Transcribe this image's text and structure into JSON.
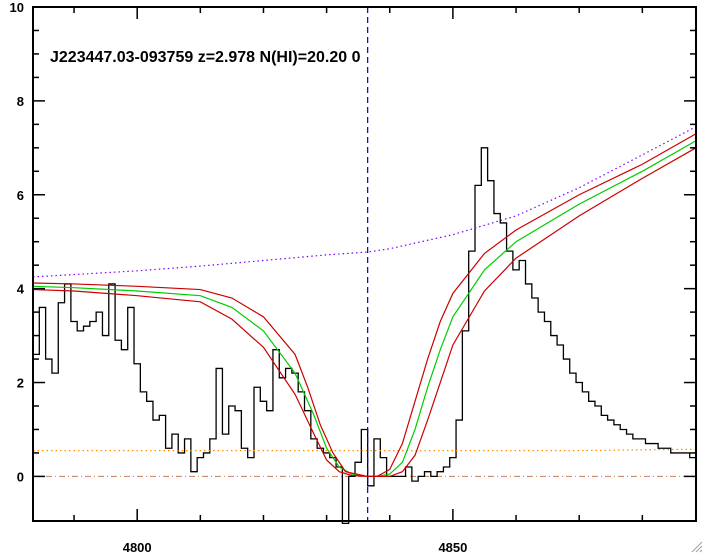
{
  "chart_data": {
    "type": "line",
    "title": "J223447.03-093759 z=2.978 N(HI)=20.20 0",
    "xlabel": "",
    "ylabel": "",
    "xlim": [
      4783.5,
      4888.5
    ],
    "ylim": [
      -0.95,
      10
    ],
    "x_ticks": [
      4800,
      4850
    ],
    "y_ticks": [
      0,
      2,
      4,
      6,
      8,
      10
    ],
    "grid": false,
    "legend": "none",
    "vline_x": 4836.5,
    "zero_level": 0,
    "series": [
      {
        "kind": "flux-histogram",
        "color": "#000000",
        "x": [
          4783.5,
          4784.5,
          4785.5,
          4786.5,
          4787.5,
          4788.5,
          4789.5,
          4790.5,
          4791.5,
          4792.5,
          4793.5,
          4794.5,
          4795.5,
          4796.5,
          4797.5,
          4798.5,
          4799.5,
          4800.5,
          4801.5,
          4802.5,
          4803.5,
          4804.5,
          4805.5,
          4806.5,
          4807.5,
          4808.5,
          4809.5,
          4810.5,
          4811.5,
          4812.5,
          4813.5,
          4814.5,
          4815.5,
          4816.5,
          4817.5,
          4818.5,
          4819.5,
          4820.5,
          4821.5,
          4822.5,
          4823.5,
          4824.5,
          4825.5,
          4826.5,
          4827.5,
          4828.5,
          4829.5,
          4830.5,
          4831.5,
          4832.5,
          4833.5,
          4834.5,
          4835.5,
          4836.5,
          4837.5,
          4838.5,
          4839.5,
          4840.5,
          4841.5,
          4842.5,
          4843.5,
          4844.5,
          4845.5,
          4846.5,
          4847.5,
          4848.5,
          4849.5,
          4850.5,
          4851.5,
          4852.5,
          4853.5,
          4854.5,
          4855.5,
          4856.5,
          4857.5,
          4858.5,
          4859.5,
          4860.5,
          4861.5,
          4862.5,
          4863.5,
          4864.5,
          4865.5,
          4866.5,
          4867.5,
          4868.5,
          4869.5,
          4870.5,
          4871.5,
          4872.5,
          4873.5,
          4874.5,
          4875.5,
          4876.5,
          4877.5,
          4878.5,
          4879.5,
          4880.5,
          4881.5,
          4882.5,
          4883.5,
          4884.5,
          4885.5,
          4886.5,
          4887.5
        ],
        "y": [
          2.6,
          3.6,
          2.5,
          2.2,
          3.7,
          4.1,
          3.3,
          3.1,
          3.2,
          3.3,
          3.5,
          3.0,
          4.1,
          2.9,
          2.7,
          3.6,
          2.4,
          1.8,
          1.6,
          1.2,
          1.3,
          0.6,
          0.9,
          0.5,
          0.8,
          0.1,
          0.4,
          0.5,
          0.8,
          2.3,
          0.9,
          1.5,
          1.4,
          0.6,
          0.4,
          1.9,
          1.6,
          1.4,
          2.7,
          2.1,
          2.3,
          2.2,
          1.8,
          1.4,
          0.8,
          0.6,
          0.5,
          0.4,
          0.2,
          -1.0,
          0.0,
          0.3,
          1.0,
          -0.2,
          0.8,
          0.4,
          0.0,
          0.0,
          0.0,
          0.2,
          -0.1,
          0.0,
          0.1,
          0.0,
          0.1,
          0.2,
          0.4,
          1.2,
          3.1,
          4.8,
          6.2,
          7.0,
          6.3,
          5.6,
          5.4,
          4.8,
          4.4,
          4.6,
          4.1,
          3.8,
          3.5,
          3.3,
          3.0,
          2.8,
          2.5,
          2.2,
          2.0,
          1.8,
          1.6,
          1.5,
          1.3,
          1.2,
          1.1,
          1.0,
          0.9,
          0.8,
          0.8,
          0.7,
          0.7,
          0.6,
          0.6,
          0.5,
          0.5,
          0.5,
          0.4
        ]
      },
      {
        "kind": "continuum",
        "style": "dotted",
        "color": "#7b00ff",
        "x": [
          4783.5,
          4790,
          4800,
          4810,
          4820,
          4830,
          4836.5,
          4840,
          4850,
          4860,
          4870,
          4880,
          4888.5
        ],
        "y": [
          4.25,
          4.3,
          4.38,
          4.48,
          4.6,
          4.72,
          4.78,
          4.85,
          5.15,
          5.55,
          6.15,
          6.85,
          7.45
        ]
      },
      {
        "kind": "error",
        "style": "dotted",
        "color": "#ff8c00",
        "x": [
          4783.5,
          4800,
          4820,
          4836.5,
          4850,
          4870,
          4888.5
        ],
        "y": [
          0.55,
          0.55,
          0.55,
          0.55,
          0.55,
          0.55,
          0.58
        ]
      },
      {
        "kind": "fit",
        "color": "#00cc00",
        "x": [
          4783.5,
          4790,
          4800,
          4810,
          4815,
          4820,
          4825,
          4828,
          4830,
          4832,
          4834,
          4836.5,
          4838,
          4840,
          4842,
          4844,
          4846,
          4848,
          4850,
          4855,
          4860,
          4870,
          4880,
          4888.5
        ],
        "y": [
          4.05,
          4.02,
          3.95,
          3.85,
          3.6,
          3.1,
          2.2,
          1.3,
          0.6,
          0.2,
          0.05,
          0.0,
          0.0,
          0.05,
          0.3,
          1.0,
          1.9,
          2.7,
          3.4,
          4.4,
          5.0,
          5.8,
          6.5,
          7.15
        ]
      },
      {
        "kind": "fit-upper",
        "color": "#cc0000",
        "x": [
          4783.5,
          4790,
          4800,
          4810,
          4815,
          4820,
          4825,
          4827,
          4829,
          4831,
          4833,
          4836.5,
          4838,
          4840,
          4842,
          4844,
          4846,
          4848,
          4850,
          4855,
          4860,
          4870,
          4880,
          4888.5
        ],
        "y": [
          4.12,
          4.1,
          4.05,
          3.98,
          3.8,
          3.4,
          2.6,
          1.9,
          1.1,
          0.5,
          0.1,
          0.0,
          0.0,
          0.15,
          0.7,
          1.6,
          2.5,
          3.3,
          3.9,
          4.75,
          5.25,
          6.0,
          6.65,
          7.3
        ]
      },
      {
        "kind": "fit-lower",
        "color": "#cc0000",
        "x": [
          4783.5,
          4790,
          4800,
          4810,
          4815,
          4820,
          4825,
          4828,
          4830,
          4832,
          4834,
          4836.5,
          4838,
          4840,
          4842,
          4844,
          4846,
          4848,
          4850,
          4855,
          4860,
          4870,
          4880,
          4888.5
        ],
        "y": [
          3.98,
          3.95,
          3.85,
          3.72,
          3.35,
          2.75,
          1.75,
          0.9,
          0.35,
          0.1,
          0.02,
          0.0,
          0.0,
          0.0,
          0.1,
          0.45,
          1.2,
          2.0,
          2.8,
          3.95,
          4.65,
          5.55,
          6.35,
          7.0
        ]
      }
    ]
  }
}
